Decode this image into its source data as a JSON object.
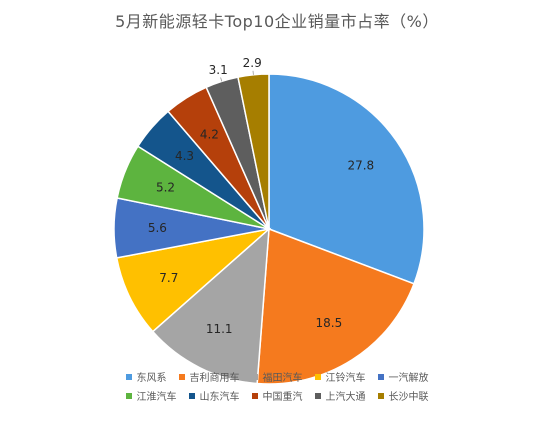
{
  "chart_data": {
    "type": "pie",
    "title": "5月新能源轻卡Top10企业销量市占率（%）",
    "categories": [
      "东风系",
      "吉利商用车",
      "福田汽车",
      "江铃汽车",
      "一汽解放",
      "江淮汽车",
      "山东汽车",
      "中国重汽",
      "上汽大通",
      "长沙中联"
    ],
    "values": [
      27.8,
      18.5,
      11.1,
      7.7,
      5.6,
      5.2,
      4.3,
      4.2,
      3.1,
      2.9
    ],
    "value_labels": [
      "27.8",
      "18.5",
      "11.1",
      "7.7",
      "5.6",
      "5.2",
      "4.3",
      "4.2",
      "3.1",
      "2.9"
    ],
    "colors": [
      "#4E9BE0",
      "#F57A1E",
      "#A5A5A5",
      "#FFC000",
      "#4472C4",
      "#5DB43F",
      "#14558C",
      "#B5400B",
      "#5E5E5E",
      "#A67E00"
    ],
    "label_color": "#404040",
    "legend_position": "bottom"
  }
}
